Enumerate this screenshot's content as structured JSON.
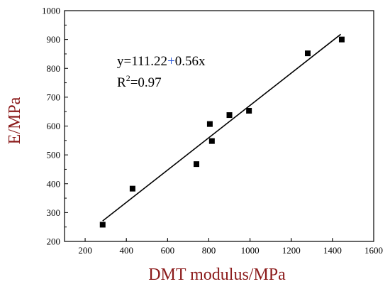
{
  "chart_data": {
    "type": "scatter",
    "title": "",
    "xlabel": "DMT modulus/MPa",
    "ylabel": "E/MPa",
    "xlim": [
      100,
      1600
    ],
    "ylim": [
      200,
      1000
    ],
    "xticks": [
      200,
      400,
      600,
      800,
      1000,
      1200,
      1400,
      1600
    ],
    "yticks": [
      200,
      300,
      400,
      500,
      600,
      700,
      800,
      900,
      1000
    ],
    "grid": false,
    "series": [
      {
        "marker": "square",
        "color": "#000000",
        "x": [
          285,
          430,
          740,
          805,
          815,
          900,
          995,
          1280,
          1445
        ],
        "y": [
          258,
          383,
          468,
          607,
          548,
          638,
          653,
          852,
          900
        ]
      }
    ],
    "fit_line": {
      "x": [
        285,
        1440
      ],
      "y": [
        271,
        918
      ],
      "color": "#000000"
    },
    "annotations": {
      "equation_prefix": "y=111.22",
      "equation_plus": "+",
      "equation_suffix": "0.56x",
      "r2_base": "R",
      "r2_sup": "2",
      "r2_value": "=0.97"
    },
    "colors": {
      "axis_title": "#8b1a1a",
      "plus_sign": "#1f4fd8"
    }
  }
}
